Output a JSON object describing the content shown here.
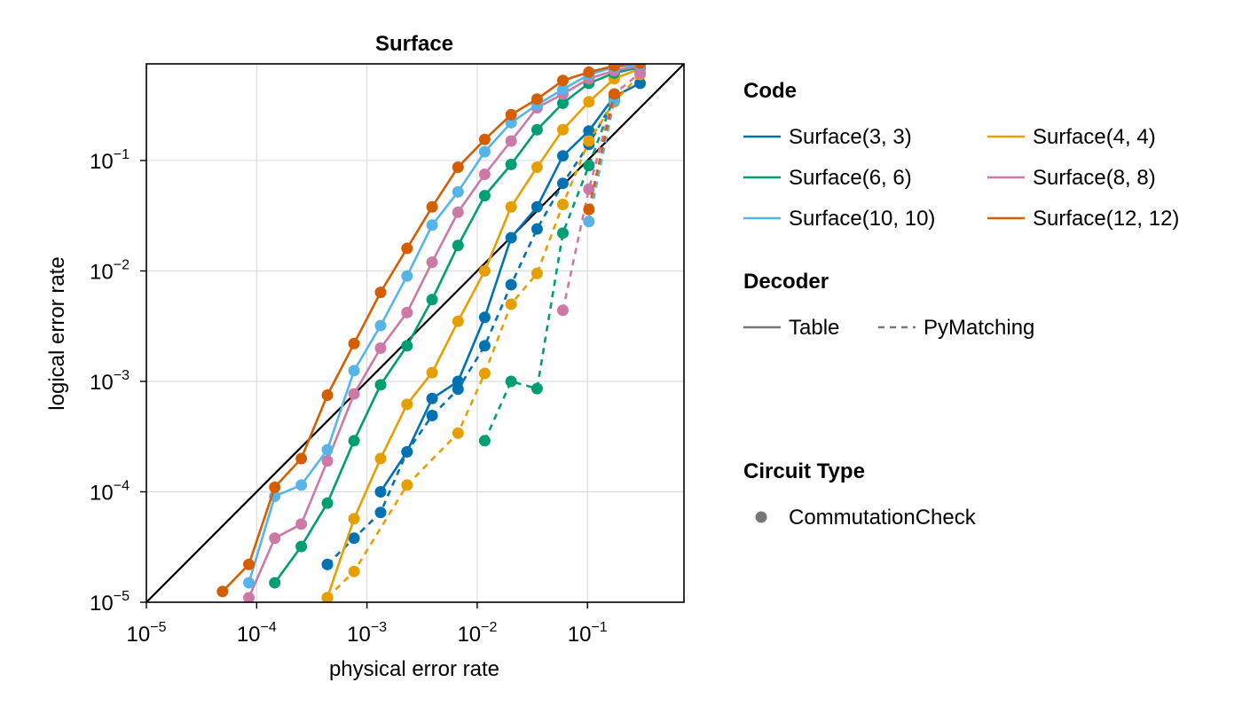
{
  "chart_data": {
    "type": "scatter",
    "title": "Surface",
    "xlabel": "physical error rate",
    "ylabel": "logical error rate",
    "xscale": "log",
    "yscale": "log",
    "xlim": [
      1e-05,
      0.75
    ],
    "ylim": [
      1e-05,
      0.75
    ],
    "grid": true,
    "x_ticks": [
      {
        "base": "10",
        "exp": "−5",
        "value": 1e-05
      },
      {
        "base": "10",
        "exp": "−4",
        "value": 0.0001
      },
      {
        "base": "10",
        "exp": "−3",
        "value": 0.001
      },
      {
        "base": "10",
        "exp": "−2",
        "value": 0.01
      },
      {
        "base": "10",
        "exp": "−1",
        "value": 0.1
      }
    ],
    "y_ticks": [
      {
        "base": "10",
        "exp": "−5",
        "value": 1e-05
      },
      {
        "base": "10",
        "exp": "−4",
        "value": 0.0001
      },
      {
        "base": "10",
        "exp": "−3",
        "value": 0.001
      },
      {
        "base": "10",
        "exp": "−2",
        "value": 0.01
      },
      {
        "base": "10",
        "exp": "−1",
        "value": 0.1
      }
    ],
    "reference_line": {
      "color": "#000000",
      "description": "y = x"
    },
    "legend_placement": "right",
    "legend": {
      "code_title": "Code",
      "codes": [
        {
          "label": "Surface(3, 3)",
          "color": "#0072B2"
        },
        {
          "label": "Surface(4, 4)",
          "color": "#E69F00"
        },
        {
          "label": "Surface(6, 6)",
          "color": "#009E73"
        },
        {
          "label": "Surface(8, 8)",
          "color": "#CC79A7"
        },
        {
          "label": "Surface(10, 10)",
          "color": "#56B4E9"
        },
        {
          "label": "Surface(12, 12)",
          "color": "#D55E00"
        }
      ],
      "decoder_title": "Decoder",
      "decoders": [
        {
          "label": "Table",
          "style": "solid"
        },
        {
          "label": "PyMatching",
          "style": "dashed"
        }
      ],
      "circuit_title": "Circuit Type",
      "circuits": [
        {
          "label": "CommutationCheck",
          "marker": "circle"
        }
      ]
    },
    "series": [
      {
        "code": "Surface(3, 3)",
        "decoder": "Table",
        "color": "#0072B2",
        "x": [
          0.00133,
          0.00231,
          0.0039,
          0.0067,
          0.0117,
          0.0203,
          0.0349,
          0.0598,
          0.103,
          0.175,
          0.3
        ],
        "y": [
          0.0001,
          0.00023,
          0.0007,
          0.001,
          0.0038,
          0.02,
          0.038,
          0.11,
          0.185,
          0.38,
          0.5
        ]
      },
      {
        "code": "Surface(3, 3)",
        "decoder": "PyMatching",
        "color": "#0072B2",
        "x": [
          0.000438,
          0.000764,
          0.00133,
          0.00231,
          0.0039,
          0.0067,
          0.0117,
          0.0203,
          0.0349,
          0.0598,
          0.103,
          0.175
        ],
        "y": [
          2.2e-05,
          3.8e-05,
          6.5e-05,
          0.00023,
          0.00049,
          0.00085,
          0.0021,
          0.0075,
          0.024,
          0.062,
          0.14,
          0.36
        ]
      },
      {
        "code": "Surface(4, 4)",
        "decoder": "Table",
        "color": "#E69F00",
        "x": [
          0.000438,
          0.000764,
          0.00133,
          0.00231,
          0.0039,
          0.0067,
          0.0117,
          0.0203,
          0.0349,
          0.0598,
          0.103,
          0.175,
          0.3
        ],
        "y": [
          1.1e-05,
          5.7e-05,
          0.0002,
          0.00062,
          0.0012,
          0.0035,
          0.01,
          0.038,
          0.087,
          0.19,
          0.34,
          0.55,
          0.68
        ]
      },
      {
        "code": "Surface(4, 4)",
        "decoder": "PyMatching",
        "color": "#E69F00",
        "x": [
          0.000438,
          0.000764,
          0.00231,
          0.0067,
          0.0117,
          0.0203,
          0.0349,
          0.0598,
          0.103,
          0.175,
          0.3
        ],
        "y": [
          1.1e-05,
          1.9e-05,
          0.000115,
          0.00034,
          0.00118,
          0.005,
          0.0095,
          0.04,
          0.15,
          0.34,
          0.6
        ]
      },
      {
        "code": "Surface(6, 6)",
        "decoder": "Table",
        "color": "#009E73",
        "x": [
          0.000146,
          0.000254,
          0.000438,
          0.000764,
          0.00133,
          0.00231,
          0.0039,
          0.0067,
          0.0117,
          0.0203,
          0.0349,
          0.0598,
          0.103,
          0.175,
          0.3
        ],
        "y": [
          1.5e-05,
          3.2e-05,
          7.9e-05,
          0.00029,
          0.00093,
          0.0021,
          0.0055,
          0.017,
          0.048,
          0.092,
          0.19,
          0.33,
          0.5,
          0.62,
          0.7
        ]
      },
      {
        "code": "Surface(6, 6)",
        "decoder": "PyMatching",
        "color": "#009E73",
        "x": [
          0.0117,
          0.0203,
          0.0349,
          0.0598,
          0.103,
          0.175
        ],
        "y": [
          0.00029,
          0.001,
          0.00086,
          0.022,
          0.09,
          0.38
        ]
      },
      {
        "code": "Surface(8, 8)",
        "decoder": "Table",
        "color": "#CC79A7",
        "x": [
          8.5e-05,
          0.000146,
          0.000254,
          0.000438,
          0.000764,
          0.00133,
          0.00231,
          0.0039,
          0.0067,
          0.0117,
          0.0203,
          0.0349,
          0.0598,
          0.103,
          0.175,
          0.3
        ],
        "y": [
          1.1e-05,
          3.8e-05,
          5.1e-05,
          0.00019,
          0.00077,
          0.002,
          0.0042,
          0.012,
          0.034,
          0.075,
          0.15,
          0.3,
          0.4,
          0.55,
          0.65,
          0.72
        ]
      },
      {
        "code": "Surface(8, 8)",
        "decoder": "PyMatching",
        "color": "#CC79A7",
        "x": [
          0.0598,
          0.103,
          0.175,
          0.3
        ],
        "y": [
          0.0044,
          0.055,
          0.4,
          0.62
        ]
      },
      {
        "code": "Surface(10, 10)",
        "decoder": "Table",
        "color": "#56B4E9",
        "x": [
          8.5e-05,
          0.000146,
          0.000254,
          0.000438,
          0.000764,
          0.00133,
          0.00231,
          0.0039,
          0.0067,
          0.0117,
          0.0203,
          0.0349,
          0.0598,
          0.103,
          0.175,
          0.3
        ],
        "y": [
          1.5e-05,
          9.1e-05,
          0.000115,
          0.00024,
          0.00125,
          0.0032,
          0.009,
          0.026,
          0.052,
          0.12,
          0.22,
          0.32,
          0.44,
          0.6,
          0.7,
          0.74
        ]
      },
      {
        "code": "Surface(10, 10)",
        "decoder": "PyMatching",
        "color": "#56B4E9",
        "x": [
          0.103,
          0.175
        ],
        "y": [
          0.028,
          0.35
        ]
      },
      {
        "code": "Surface(12, 12)",
        "decoder": "Table",
        "color": "#D55E00",
        "x": [
          4.9e-05,
          8.5e-05,
          0.000146,
          0.000254,
          0.000438,
          0.000764,
          0.00133,
          0.00231,
          0.0039,
          0.0067,
          0.0117,
          0.0203,
          0.0349,
          0.0598,
          0.103,
          0.175,
          0.3
        ],
        "y": [
          1.25e-05,
          2.2e-05,
          0.00011,
          0.0002,
          0.00075,
          0.0022,
          0.0064,
          0.016,
          0.038,
          0.087,
          0.155,
          0.26,
          0.36,
          0.53,
          0.63,
          0.72,
          0.76
        ]
      },
      {
        "code": "Surface(12, 12)",
        "decoder": "PyMatching",
        "color": "#D55E00",
        "x": [
          0.103,
          0.175
        ],
        "y": [
          0.036,
          0.4
        ]
      }
    ]
  }
}
